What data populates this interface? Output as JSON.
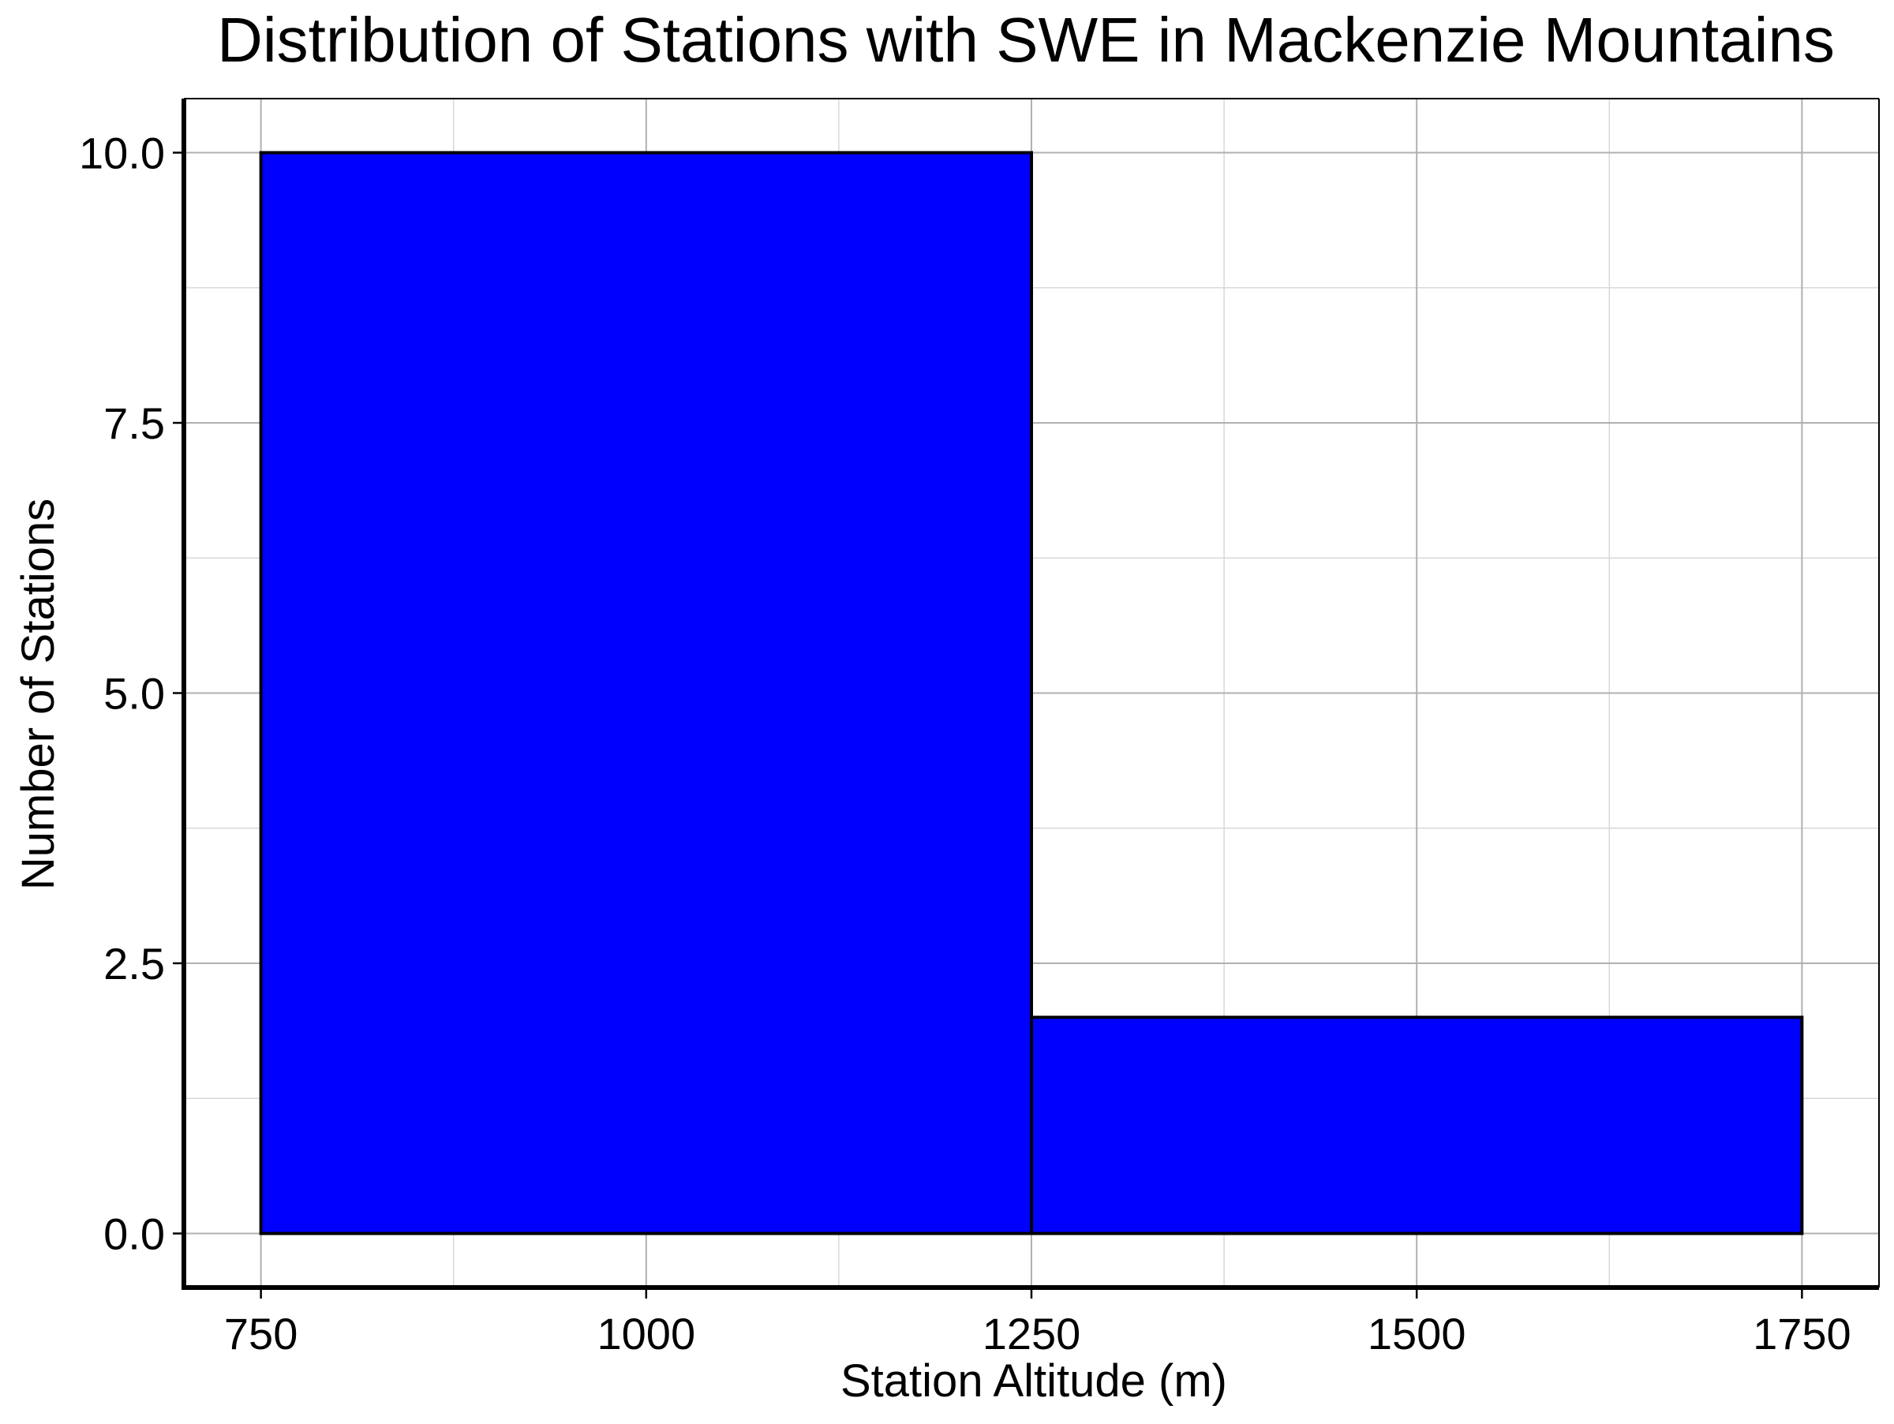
{
  "chart_data": {
    "type": "bar",
    "title": "Distribution of Stations with SWE in Mackenzie Mountains",
    "xlabel": "Station Altitude (m)",
    "ylabel": "Number of Stations",
    "bins": [
      {
        "x0": 750,
        "x1": 1250,
        "value": 10
      },
      {
        "x0": 1250,
        "x1": 1750,
        "value": 2
      }
    ],
    "xlim": [
      700,
      1800
    ],
    "ylim": [
      -0.5,
      10.5
    ],
    "xticks": [
      750,
      1000,
      1250,
      1500,
      1750
    ],
    "xtick_labels": [
      "750",
      "1000",
      "1250",
      "1500",
      "1750"
    ],
    "yticks": [
      0,
      2.5,
      5,
      7.5,
      10
    ],
    "ytick_labels": [
      "0.0",
      "2.5",
      "5.0",
      "7.5",
      "10.0"
    ],
    "x_minor_ticks": [
      875,
      1125,
      1375,
      1625
    ],
    "y_minor_ticks": [
      1.25,
      3.75,
      6.25,
      8.75
    ],
    "grid": true,
    "legend": false,
    "colors": {
      "bar_fill": "#0000ff",
      "bar_edge": "#000000",
      "grid_major": "#b0b0b0",
      "grid_minor": "#d8d8d8",
      "axis": "#000000"
    }
  }
}
